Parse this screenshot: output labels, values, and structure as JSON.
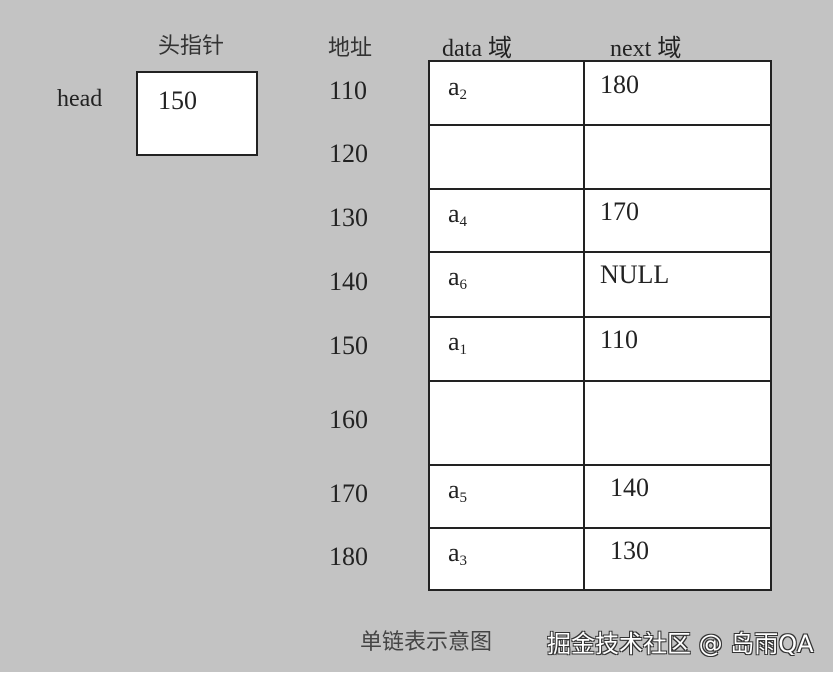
{
  "head_pointer": {
    "title": "头指针",
    "label": "head",
    "value": "150"
  },
  "columns": {
    "address": "地址",
    "data": "data 域",
    "next": "next 域"
  },
  "rows": [
    {
      "address": "110",
      "data": "a",
      "sub": "2",
      "next": "180"
    },
    {
      "address": "120",
      "data": "",
      "sub": "",
      "next": ""
    },
    {
      "address": "130",
      "data": "a",
      "sub": "4",
      "next": "170"
    },
    {
      "address": "140",
      "data": "a",
      "sub": "6",
      "next": "NULL"
    },
    {
      "address": "150",
      "data": "a",
      "sub": "1",
      "next": "110"
    },
    {
      "address": "160",
      "data": "",
      "sub": "",
      "next": ""
    },
    {
      "address": "170",
      "data": "a",
      "sub": "5",
      "next": "140"
    },
    {
      "address": "180",
      "data": "a",
      "sub": "3",
      "next": "130"
    }
  ],
  "caption": "单链表示意图",
  "watermark": "掘金技术社区 @ 岛雨QA"
}
